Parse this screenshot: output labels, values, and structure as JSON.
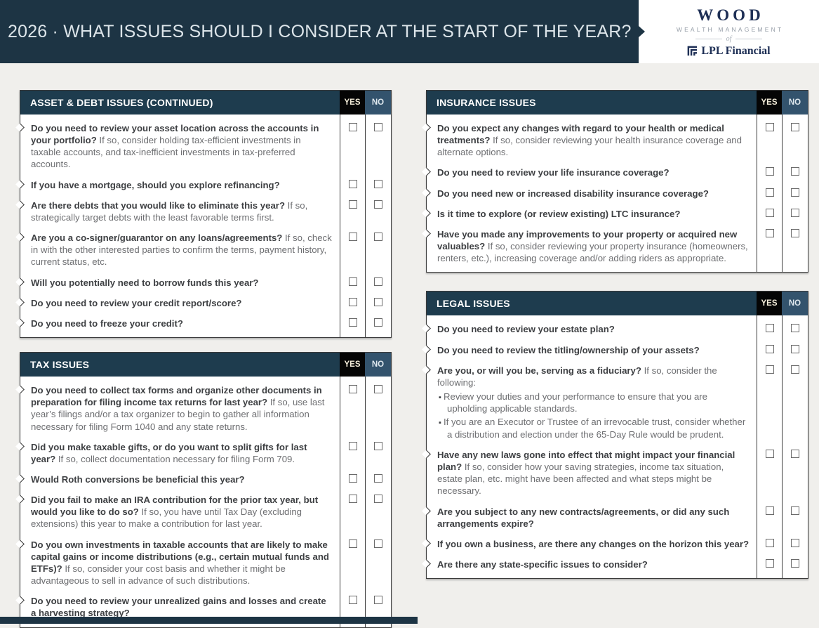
{
  "colors": {
    "banner_bg": "#1d3444",
    "header_bg": "#1e3c4e",
    "yes_bg": "#050505",
    "no_bg": "#33536d",
    "brand_navy": "#1e2f55",
    "page_bg": "#f0efec",
    "question_text": "#3e4043",
    "note_text": "#6d6e71"
  },
  "header": {
    "title": "2026 · WHAT ISSUES SHOULD I CONSIDER AT THE START OF THE YEAR?",
    "brand": {
      "name": "Wood",
      "subtitle": "Wealth Management",
      "connector": "of",
      "company": "LPL Financial",
      "logo_icon": "lpl-nested-squares-icon"
    }
  },
  "col_labels": {
    "yes": "YES",
    "no": "NO"
  },
  "sections": [
    {
      "column": "left",
      "title": "ASSET & DEBT ISSUES (CONTINUED)",
      "items": [
        {
          "q": "Do you need to review your asset location across the accounts in your portfolio?",
          "note": "If so, consider holding tax-efficient investments in taxable accounts, and tax-inefficient investments in tax-preferred accounts.",
          "yes_checked": false,
          "no_checked": false
        },
        {
          "q": "If you have a mortgage, should you explore refinancing?",
          "note": "",
          "yes_checked": false,
          "no_checked": false
        },
        {
          "q": "Are there debts that you would like to eliminate this year?",
          "note": "If so, strategically target debts with the least favorable terms first.",
          "yes_checked": false,
          "no_checked": false
        },
        {
          "q": "Are you a co-signer/guarantor on any loans/agreements?",
          "note": "If so, check in with the other interested parties to confirm the terms, payment history, current status, etc.",
          "yes_checked": false,
          "no_checked": false
        },
        {
          "q": "Will you potentially need to borrow funds this year?",
          "note": "",
          "yes_checked": false,
          "no_checked": false
        },
        {
          "q": "Do you need to review your credit report/score?",
          "note": "",
          "yes_checked": false,
          "no_checked": false
        },
        {
          "q": "Do you need to freeze your credit?",
          "note": "",
          "yes_checked": false,
          "no_checked": false
        }
      ]
    },
    {
      "column": "left",
      "title": "TAX ISSUES",
      "items": [
        {
          "q": "Do you need to collect tax forms and organize other documents in preparation for filing income tax returns for last year?",
          "note": "If so, use last year’s filings and/or a tax organizer to begin to gather all information necessary for filing Form 1040 and any state returns.",
          "yes_checked": false,
          "no_checked": false
        },
        {
          "q": "Did you make taxable gifts, or do you want to split gifts for last year?",
          "note": "If so, collect documentation necessary for filing Form 709.",
          "yes_checked": false,
          "no_checked": false
        },
        {
          "q": "Would Roth conversions be beneficial this year?",
          "note": "",
          "yes_checked": false,
          "no_checked": false
        },
        {
          "q": "Did you fail to make an IRA contribution for the prior tax year, but would you like to do so?",
          "note": "If so, you have until Tax Day (excluding extensions) this year to make a contribution for last year.",
          "yes_checked": false,
          "no_checked": false
        },
        {
          "q": "Do you own investments in taxable accounts that are likely to make capital gains or income distributions (e.g., certain mutual funds and ETFs)?",
          "note": "If so, consider your cost basis and whether it might be advantageous to sell in advance of such distributions.",
          "yes_checked": false,
          "no_checked": false
        },
        {
          "q": "Do you need to review your unrealized gains and losses and create a harvesting strategy?",
          "note": "",
          "yes_checked": false,
          "no_checked": false
        }
      ]
    },
    {
      "column": "right",
      "title": "INSURANCE ISSUES",
      "items": [
        {
          "q": "Do you expect any changes with regard to your health or medical treatments?",
          "note": "If so, consider reviewing your health insurance coverage and alternate options.",
          "yes_checked": false,
          "no_checked": false
        },
        {
          "q": "Do you need to review your life insurance coverage?",
          "note": "",
          "yes_checked": false,
          "no_checked": false
        },
        {
          "q": "Do you need new or increased disability insurance coverage?",
          "note": "",
          "yes_checked": false,
          "no_checked": false
        },
        {
          "q": "Is it time to explore (or review existing) LTC insurance?",
          "note": "",
          "yes_checked": false,
          "no_checked": false
        },
        {
          "q": "Have you made any improvements to your property or acquired new valuables?",
          "note": "If so, consider reviewing your property insurance (homeowners, renters, etc.), increasing coverage and/or adding riders as appropriate.",
          "yes_checked": false,
          "no_checked": false
        }
      ]
    },
    {
      "column": "right",
      "title": "LEGAL ISSUES",
      "items": [
        {
          "q": "Do you need to review your estate plan?",
          "note": "",
          "yes_checked": false,
          "no_checked": false
        },
        {
          "q": "Do you need to review the titling/ownership of your assets?",
          "note": "",
          "yes_checked": false,
          "no_checked": false
        },
        {
          "q": "Are you, or will you be, serving as a fiduciary?",
          "note": "If so, consider the following:",
          "bullets": [
            "Review your duties and your performance to ensure that you are upholding applicable standards.",
            "If you are an Executor or Trustee of an irrevocable trust, consider whether a distribution and election under the 65-Day Rule would be prudent."
          ],
          "yes_checked": false,
          "no_checked": false
        },
        {
          "q": "Have any new laws gone into effect that might impact your financial plan?",
          "note": "If so, consider how your saving strategies, income tax situation, estate plan, etc. might have been affected and what steps might be necessary.",
          "yes_checked": false,
          "no_checked": false
        },
        {
          "q": "Are you subject to any new contracts/agreements, or did any such arrangements expire?",
          "note": "",
          "yes_checked": false,
          "no_checked": false
        },
        {
          "q": "If you own a business, are there any changes on the horizon this year?",
          "note": "",
          "yes_checked": false,
          "no_checked": false
        },
        {
          "q": "Are there any state-specific issues to consider?",
          "note": "",
          "yes_checked": false,
          "no_checked": false
        }
      ]
    }
  ]
}
